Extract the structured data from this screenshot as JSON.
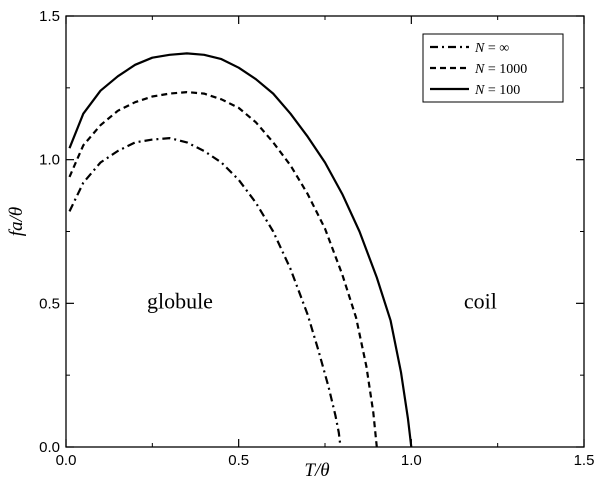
{
  "chart_data": {
    "type": "line",
    "xlabel": "T/θ",
    "ylabel": "fa/θ",
    "xlim": [
      0,
      1.5
    ],
    "ylim": [
      0,
      1.5
    ],
    "xticks": [
      0.0,
      0.5,
      1.0,
      1.5
    ],
    "yticks": [
      0.0,
      0.5,
      1.0,
      1.5
    ],
    "xtick_labels": [
      "0.0",
      "0.5",
      "1.0",
      "1.5"
    ],
    "ytick_labels": [
      "0.0",
      "0.5",
      "1.0",
      "1.5"
    ],
    "grid": false,
    "legend_position": "top-right",
    "annotations": [
      {
        "text": "globule",
        "x": 0.33,
        "y": 0.5
      },
      {
        "text": "coil",
        "x": 1.2,
        "y": 0.5
      }
    ],
    "series": [
      {
        "name": "N = ∞",
        "legend_var": "N",
        "legend_val": "∞",
        "style": "dashdot",
        "x": [
          0.01,
          0.05,
          0.1,
          0.15,
          0.2,
          0.25,
          0.3,
          0.35,
          0.4,
          0.45,
          0.5,
          0.55,
          0.6,
          0.65,
          0.7,
          0.73,
          0.76,
          0.78,
          0.79,
          0.795
        ],
        "y": [
          0.82,
          0.92,
          0.99,
          1.03,
          1.06,
          1.07,
          1.075,
          1.06,
          1.03,
          0.99,
          0.93,
          0.85,
          0.75,
          0.62,
          0.46,
          0.34,
          0.21,
          0.11,
          0.05,
          0.0
        ]
      },
      {
        "name": "N = 1000",
        "legend_var": "N",
        "legend_val": "1000",
        "style": "dashed",
        "x": [
          0.01,
          0.05,
          0.1,
          0.15,
          0.2,
          0.25,
          0.3,
          0.35,
          0.4,
          0.45,
          0.5,
          0.55,
          0.6,
          0.65,
          0.7,
          0.75,
          0.8,
          0.84,
          0.87,
          0.89,
          0.9
        ],
        "y": [
          0.94,
          1.05,
          1.12,
          1.17,
          1.2,
          1.22,
          1.23,
          1.235,
          1.23,
          1.21,
          1.18,
          1.13,
          1.06,
          0.98,
          0.88,
          0.76,
          0.6,
          0.45,
          0.28,
          0.12,
          0.0
        ]
      },
      {
        "name": "N = 100",
        "legend_var": "N",
        "legend_val": "100",
        "style": "solid",
        "x": [
          0.01,
          0.05,
          0.1,
          0.15,
          0.2,
          0.25,
          0.3,
          0.35,
          0.4,
          0.45,
          0.5,
          0.55,
          0.6,
          0.65,
          0.7,
          0.75,
          0.8,
          0.85,
          0.9,
          0.94,
          0.97,
          0.99,
          1.0
        ],
        "y": [
          1.04,
          1.16,
          1.24,
          1.29,
          1.33,
          1.355,
          1.365,
          1.37,
          1.365,
          1.35,
          1.32,
          1.28,
          1.23,
          1.16,
          1.08,
          0.99,
          0.88,
          0.75,
          0.59,
          0.44,
          0.26,
          0.1,
          0.0
        ]
      }
    ]
  }
}
